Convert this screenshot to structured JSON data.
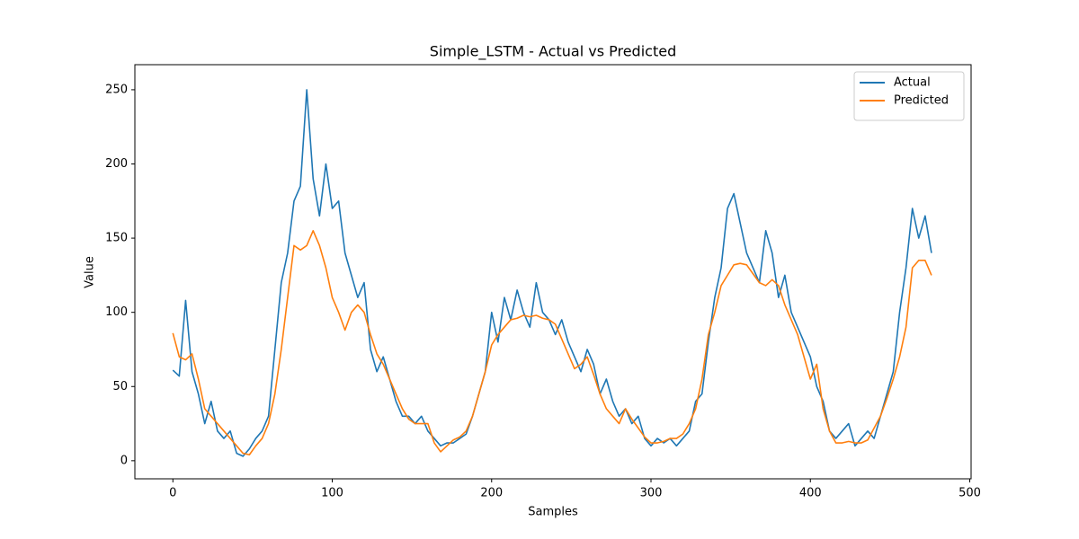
{
  "chart_data": {
    "type": "line",
    "title": "Simple_LSTM - Actual vs Predicted",
    "x_label": "Samples",
    "y_label": "Value",
    "x": [
      0,
      4,
      8,
      12,
      16,
      20,
      24,
      28,
      32,
      36,
      40,
      44,
      48,
      52,
      56,
      60,
      64,
      68,
      72,
      76,
      80,
      84,
      88,
      92,
      96,
      100,
      104,
      108,
      112,
      116,
      120,
      124,
      128,
      132,
      136,
      140,
      144,
      148,
      152,
      156,
      160,
      164,
      168,
      172,
      176,
      180,
      184,
      188,
      192,
      196,
      200,
      204,
      208,
      212,
      216,
      220,
      224,
      228,
      232,
      236,
      240,
      244,
      248,
      252,
      256,
      260,
      264,
      268,
      272,
      276,
      280,
      284,
      288,
      292,
      296,
      300,
      304,
      308,
      312,
      316,
      320,
      324,
      328,
      332,
      336,
      340,
      344,
      348,
      352,
      356,
      360,
      364,
      368,
      372,
      376,
      380,
      384,
      388,
      392,
      396,
      400,
      404,
      408,
      412,
      416,
      420,
      424,
      428,
      432,
      436,
      440,
      444,
      448,
      452,
      456,
      460,
      464,
      468,
      472,
      476
    ],
    "series": [
      {
        "name": "Actual",
        "color": "#1f77b4",
        "values": [
          61,
          57,
          108,
          60,
          45,
          25,
          40,
          20,
          15,
          20,
          5,
          3,
          8,
          15,
          20,
          30,
          75,
          120,
          140,
          175,
          185,
          250,
          190,
          165,
          200,
          170,
          175,
          140,
          125,
          110,
          120,
          75,
          60,
          70,
          55,
          40,
          30,
          30,
          25,
          30,
          20,
          15,
          10,
          12,
          12,
          15,
          18,
          30,
          45,
          60,
          100,
          80,
          110,
          95,
          115,
          100,
          90,
          120,
          100,
          95,
          85,
          95,
          80,
          70,
          60,
          75,
          65,
          45,
          55,
          40,
          30,
          35,
          25,
          30,
          15,
          10,
          15,
          12,
          15,
          10,
          15,
          20,
          40,
          45,
          80,
          110,
          130,
          170,
          180,
          160,
          140,
          130,
          120,
          155,
          140,
          110,
          125,
          100,
          90,
          80,
          70,
          50,
          40,
          20,
          15,
          20,
          25,
          10,
          15,
          20,
          15,
          30,
          45,
          60,
          100,
          130,
          170,
          150,
          165,
          140
        ]
      },
      {
        "name": "Predicted",
        "color": "#ff7f0e",
        "values": [
          86,
          70,
          68,
          72,
          55,
          35,
          30,
          25,
          20,
          15,
          10,
          5,
          4,
          10,
          15,
          25,
          45,
          75,
          110,
          145,
          142,
          145,
          155,
          145,
          130,
          110,
          100,
          88,
          100,
          105,
          100,
          85,
          72,
          65,
          55,
          45,
          35,
          28,
          25,
          25,
          25,
          12,
          6,
          10,
          14,
          16,
          20,
          30,
          45,
          60,
          78,
          85,
          90,
          95,
          96,
          98,
          97,
          98,
          96,
          95,
          92,
          82,
          72,
          62,
          65,
          70,
          58,
          45,
          35,
          30,
          25,
          35,
          28,
          22,
          16,
          12,
          12,
          13,
          15,
          15,
          18,
          25,
          35,
          55,
          85,
          100,
          118,
          125,
          132,
          133,
          132,
          126,
          120,
          118,
          122,
          118,
          105,
          95,
          85,
          70,
          55,
          65,
          35,
          20,
          12,
          12,
          13,
          12,
          12,
          14,
          22,
          30,
          42,
          55,
          70,
          90,
          130,
          135,
          135,
          125
        ]
      }
    ],
    "xlim": [
      -23.85,
      500.85
    ],
    "ylim": [
      -12.2,
      266.9
    ],
    "xticks": [
      0,
      100,
      200,
      300,
      400,
      500
    ],
    "yticks": [
      0,
      50,
      100,
      150,
      200,
      250
    ],
    "legend": "upper right"
  }
}
